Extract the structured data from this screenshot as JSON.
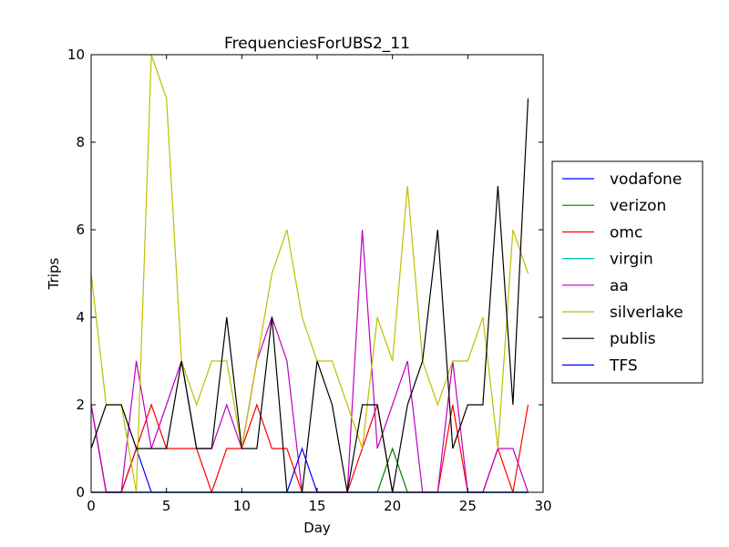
{
  "chart_data": {
    "type": "line",
    "title": "FrequenciesForUBS2_11",
    "xlabel": "Day",
    "ylabel": "Trips",
    "xlim": [
      0,
      30
    ],
    "ylim": [
      0,
      10
    ],
    "xticks": [
      "0",
      "5",
      "10",
      "15",
      "20",
      "25",
      "30"
    ],
    "yticks": [
      "0",
      "2",
      "4",
      "6",
      "8",
      "10"
    ],
    "grid": false,
    "legend_position": "outside-right",
    "x": [
      0,
      1,
      2,
      3,
      4,
      5,
      6,
      7,
      8,
      9,
      10,
      11,
      12,
      13,
      14,
      15,
      16,
      17,
      18,
      19,
      20,
      21,
      22,
      23,
      24,
      25,
      26,
      27,
      28,
      29
    ],
    "series": [
      {
        "name": "vodafone",
        "color": "#0000ff",
        "values": [
          2,
          0,
          0,
          1,
          0,
          0,
          0,
          0,
          0,
          0,
          0,
          0,
          0,
          0,
          0,
          0,
          0,
          0,
          0,
          0,
          0,
          0,
          0,
          0,
          0,
          0,
          0,
          0,
          0,
          0
        ]
      },
      {
        "name": "verizon",
        "color": "#008000",
        "values": [
          0,
          0,
          0,
          0,
          0,
          0,
          0,
          0,
          0,
          0,
          0,
          0,
          0,
          0,
          0,
          0,
          0,
          0,
          0,
          0,
          1,
          0,
          0,
          0,
          0,
          0,
          0,
          0,
          0,
          0
        ]
      },
      {
        "name": "omc",
        "color": "#ff0000",
        "values": [
          2,
          0,
          0,
          1,
          2,
          1,
          1,
          1,
          0,
          1,
          1,
          2,
          1,
          1,
          0,
          0,
          0,
          0,
          1,
          2,
          0,
          0,
          0,
          0,
          2,
          0,
          0,
          1,
          0,
          2
        ]
      },
      {
        "name": "virgin",
        "color": "#00bfbf",
        "values": [
          0,
          0,
          0,
          0,
          0,
          0,
          0,
          0,
          0,
          0,
          0,
          0,
          0,
          0,
          0,
          0,
          0,
          0,
          0,
          0,
          0,
          0,
          0,
          0,
          0,
          0,
          0,
          0,
          0,
          0
        ]
      },
      {
        "name": "aa",
        "color": "#bf00bf",
        "values": [
          2,
          0,
          0,
          3,
          1,
          2,
          3,
          1,
          1,
          2,
          1,
          3,
          4,
          3,
          0,
          0,
          0,
          0,
          6,
          1,
          2,
          3,
          0,
          0,
          3,
          0,
          0,
          1,
          1,
          0
        ]
      },
      {
        "name": "silverlake",
        "color": "#bfbf00",
        "values": [
          5,
          2,
          2,
          0,
          10,
          9,
          3,
          2,
          3,
          3,
          1,
          3,
          5,
          6,
          4,
          3,
          3,
          2,
          1,
          4,
          3,
          7,
          3,
          2,
          3,
          3,
          4,
          1,
          6,
          5
        ]
      },
      {
        "name": "publis",
        "color": "#000000",
        "values": [
          1,
          2,
          2,
          1,
          1,
          1,
          3,
          1,
          1,
          4,
          1,
          1,
          4,
          0,
          0,
          3,
          2,
          0,
          2,
          2,
          0,
          2,
          3,
          6,
          1,
          2,
          2,
          7,
          2,
          9
        ]
      },
      {
        "name": "TFS",
        "color": "#0000ff",
        "values": [
          0,
          0,
          0,
          0,
          0,
          0,
          0,
          0,
          0,
          0,
          0,
          0,
          0,
          0,
          1,
          0,
          0,
          0,
          0,
          0,
          0,
          0,
          0,
          0,
          0,
          0,
          0,
          0,
          0,
          0
        ]
      }
    ]
  }
}
